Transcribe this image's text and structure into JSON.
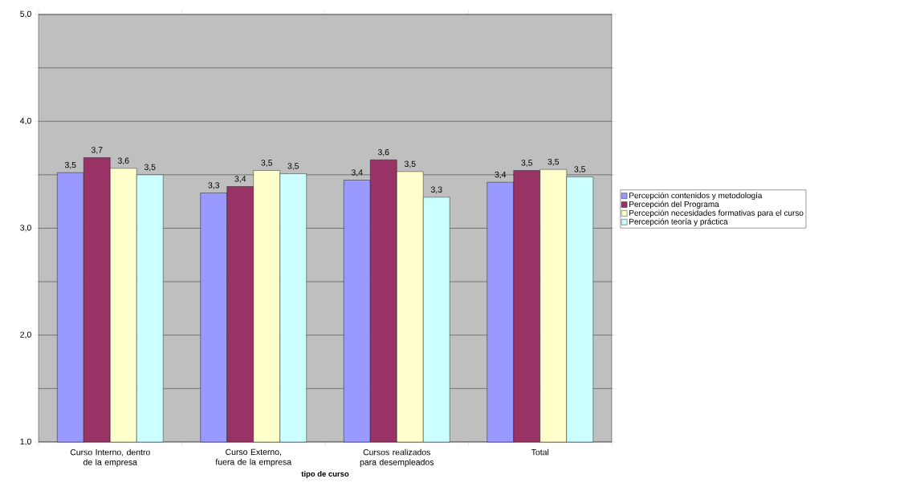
{
  "chart_data": {
    "type": "bar",
    "xlabel": "tipo de curso",
    "categories": [
      "Curso Interno, dentro de la empresa",
      "Curso Externo, fuera de la empresa",
      "Cursos realizados para desempleados",
      "Total"
    ],
    "series": [
      {
        "name": "Percepción contenidos y metodología",
        "color": "#9999ff",
        "values": [
          3.52,
          3.33,
          3.45,
          3.43
        ],
        "value_labels": [
          "3,5",
          "3,3",
          "3,4",
          "3,4"
        ]
      },
      {
        "name": "Percepción del Programa",
        "color": "#993366",
        "values": [
          3.66,
          3.39,
          3.64,
          3.54
        ],
        "value_labels": [
          "3,7",
          "3,4",
          "3,6",
          "3,5"
        ]
      },
      {
        "name": "Percepción necesidades formativas para el curso",
        "color": "#ffffcc",
        "values": [
          3.56,
          3.54,
          3.53,
          3.55
        ],
        "value_labels": [
          "3,6",
          "3,5",
          "3,5",
          "3,5"
        ]
      },
      {
        "name": "Percepción teoría y práctica",
        "color": "#ccffff",
        "values": [
          3.5,
          3.51,
          3.29,
          3.48
        ],
        "value_labels": [
          "3,5",
          "3,5",
          "3,3",
          "3,5"
        ]
      }
    ],
    "ylim": [
      1,
      5
    ],
    "yticks": [
      {
        "value": 1,
        "label": "1,0"
      },
      {
        "value": 1.5,
        "label": null
      },
      {
        "value": 2,
        "label": "2,0"
      },
      {
        "value": 2.5,
        "label": null
      },
      {
        "value": 3,
        "label": "3,0"
      },
      {
        "value": 3.5,
        "label": null
      },
      {
        "value": 4,
        "label": "4,0"
      },
      {
        "value": 4.5,
        "label": null
      },
      {
        "value": 5,
        "label": "5,0"
      }
    ],
    "grid": "y",
    "legend": "right"
  }
}
